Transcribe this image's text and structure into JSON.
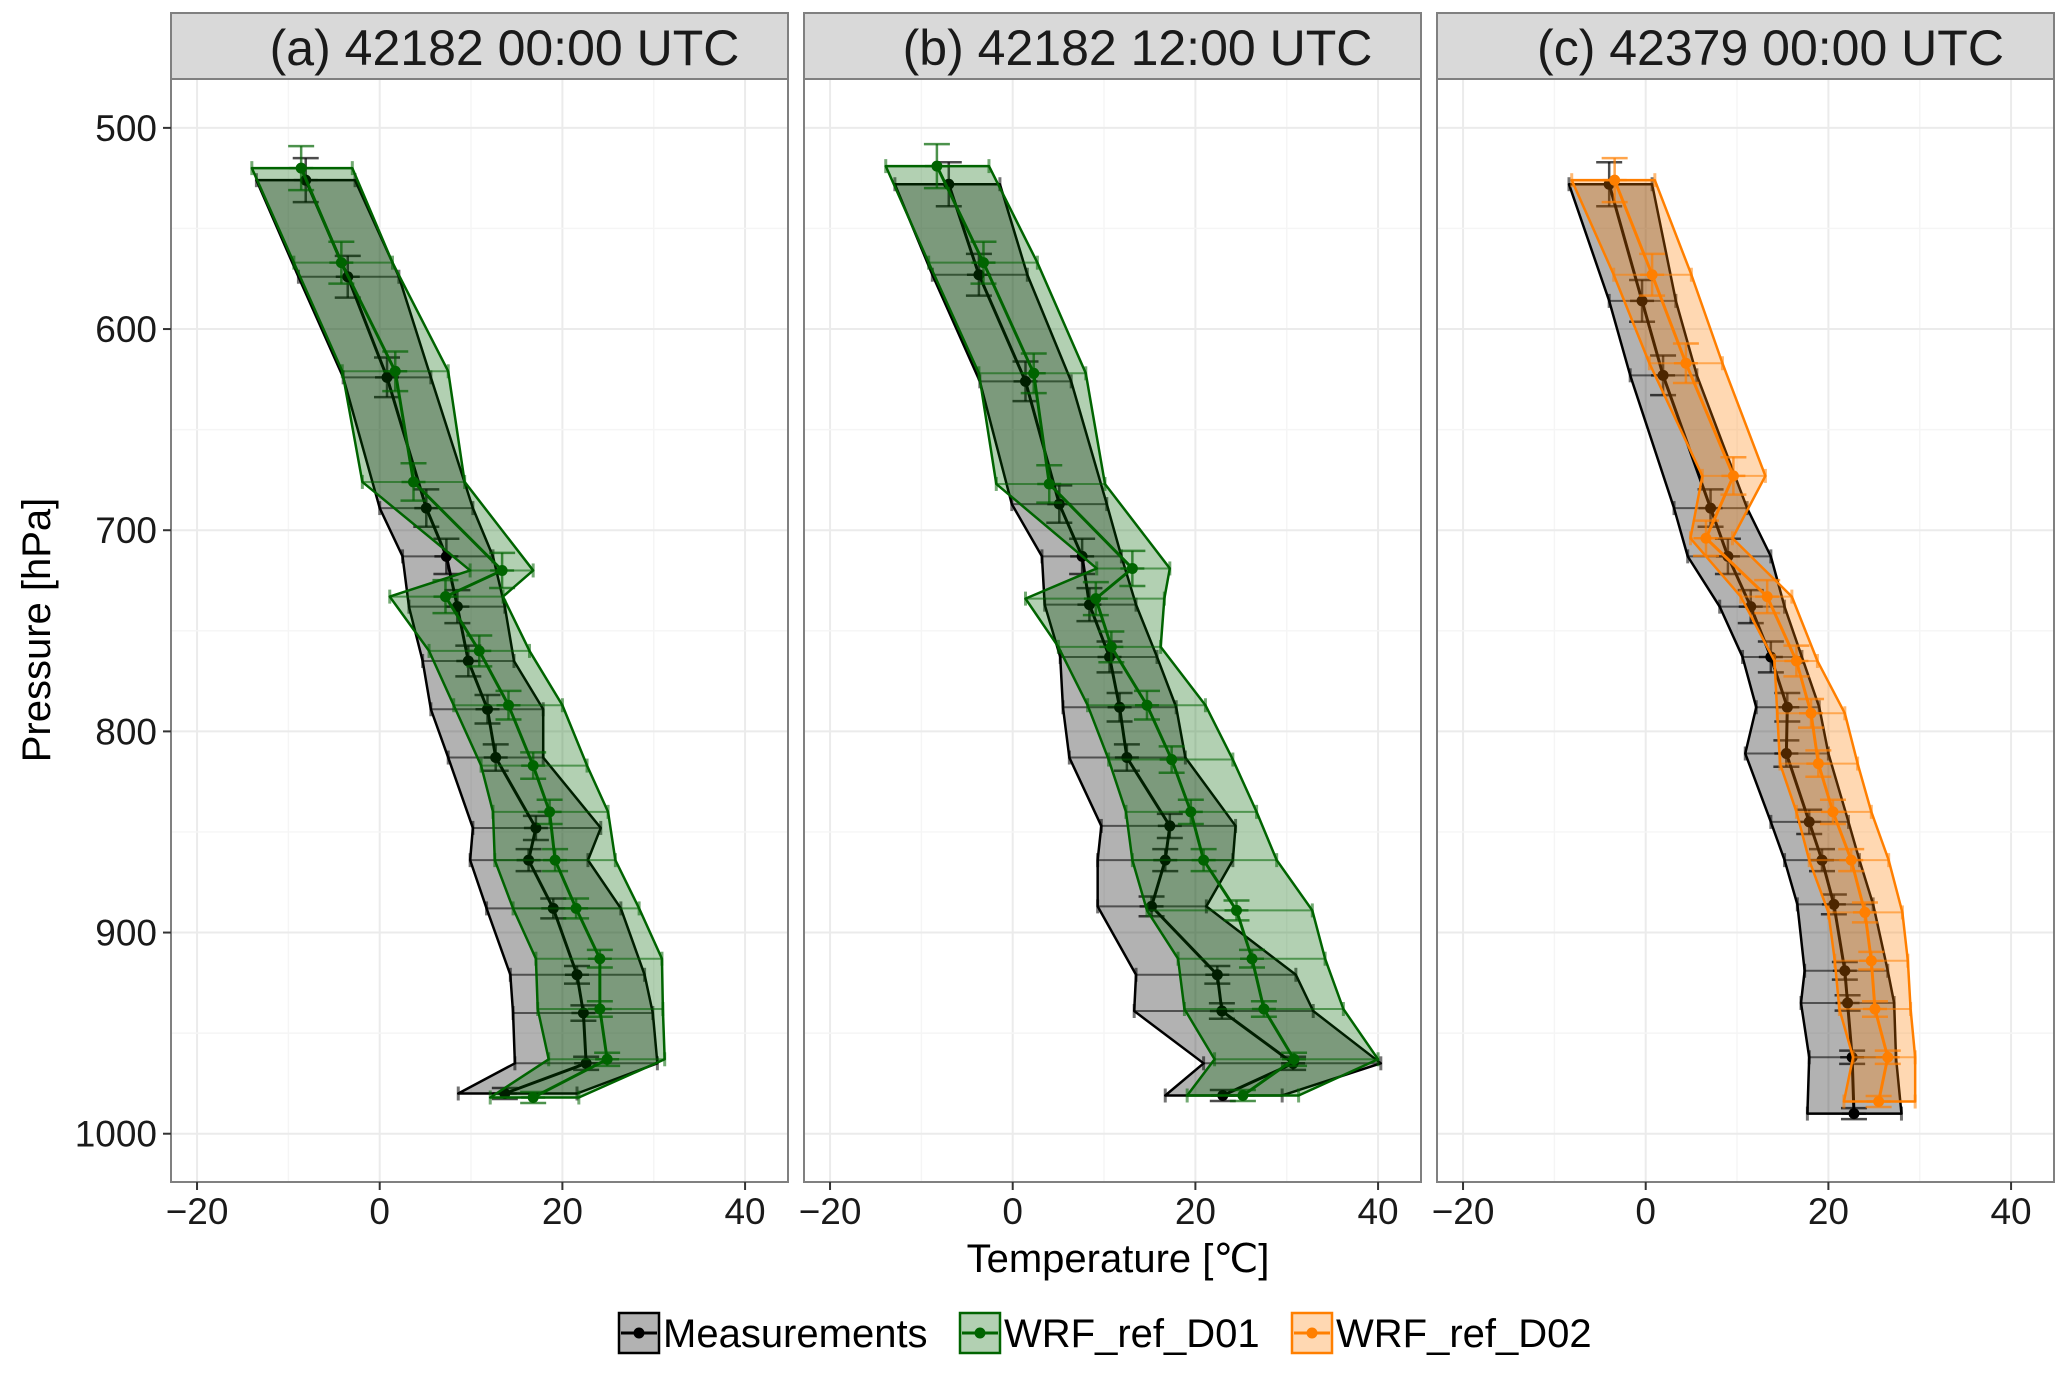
{
  "chart_data": {
    "type": "line",
    "xlabel": "Temperature [℃]",
    "ylabel": "Pressure [hPa]",
    "xlim": [
      -22.85,
      44.7
    ],
    "ylim": [
      1024,
      475.7
    ],
    "xticks": [
      -20,
      0,
      20,
      40
    ],
    "yticks": [
      500,
      600,
      700,
      800,
      900,
      1000
    ],
    "grid": true,
    "legend": {
      "placement": "bottom",
      "entries": [
        {
          "name": "Measurements",
          "color": "#000000",
          "fill": "rgba(0,0,0,0.3)"
        },
        {
          "name": "WRF_ref_D01",
          "color": "#006400",
          "fill": "rgba(0,100,0,0.3)"
        },
        {
          "name": "WRF_ref_D02",
          "color": "#ff7f00",
          "fill": "rgba(255,127,0,0.3)"
        }
      ]
    },
    "point_format": "[pressure_hPa, temperature_C, ribbon_low_C, ribbon_high_C]",
    "panels": [
      {
        "title": "(a) 42182 00:00 UTC",
        "series": [
          {
            "name": "Measurements",
            "points": [
              [
                526,
                -8.1,
                -13.5,
                -2.7
              ],
              [
                574,
                -3.5,
                -8.9,
                2.1
              ],
              [
                624,
                0.8,
                -4.0,
                5.6
              ],
              [
                689,
                5.1,
                0.0,
                10.2
              ],
              [
                713,
                7.3,
                2.5,
                12.4
              ],
              [
                738,
                8.5,
                3.2,
                13.7
              ],
              [
                765,
                9.7,
                4.7,
                14.7
              ],
              [
                789,
                11.8,
                5.6,
                17.9
              ],
              [
                813,
                12.7,
                7.5,
                17.9
              ],
              [
                848,
                17.1,
                10.2,
                24.2
              ],
              [
                864,
                16.3,
                9.9,
                22.8
              ],
              [
                888,
                19.0,
                11.7,
                26.4
              ],
              [
                921,
                21.6,
                14.3,
                29.0
              ],
              [
                940,
                22.3,
                14.6,
                29.9
              ],
              [
                965,
                22.6,
                14.8,
                30.4
              ],
              [
                980,
                13.7,
                8.6,
                21.6
              ]
            ]
          },
          {
            "name": "WRF_ref_D01",
            "points": [
              [
                520,
                -8.6,
                -14.0,
                -3.0
              ],
              [
                567,
                -4.2,
                -9.4,
                1.4
              ],
              [
                621,
                1.7,
                -4.1,
                7.5
              ],
              [
                676,
                3.7,
                -1.9,
                9.3
              ],
              [
                720,
                13.4,
                9.9,
                16.8
              ],
              [
                733,
                7.2,
                1.1,
                13.5
              ],
              [
                760,
                10.9,
                5.4,
                16.4
              ],
              [
                787,
                14.1,
                8.1,
                20.0
              ],
              [
                817,
                16.8,
                11.1,
                22.7
              ],
              [
                840,
                18.6,
                12.4,
                25.0
              ],
              [
                864,
                19.2,
                12.6,
                25.8
              ],
              [
                888,
                21.5,
                14.6,
                28.4
              ],
              [
                913,
                24.1,
                17.1,
                30.9
              ],
              [
                938,
                24.1,
                17.3,
                31.0
              ],
              [
                963,
                24.9,
                18.5,
                31.2
              ],
              [
                982,
                16.8,
                12.1,
                21.8
              ]
            ]
          }
        ]
      },
      {
        "title": "(b) 42182 12:00 UTC",
        "series": [
          {
            "name": "Measurements",
            "points": [
              [
                528,
                -7.0,
                -12.9,
                -1.4
              ],
              [
                573,
                -3.7,
                -8.8,
                1.6
              ],
              [
                626,
                1.4,
                -3.6,
                6.4
              ],
              [
                687,
                5.1,
                -0.1,
                10.3
              ],
              [
                713,
                7.6,
                3.2,
                11.9
              ],
              [
                737,
                8.4,
                3.5,
                13.5
              ],
              [
                763,
                10.6,
                5.2,
                15.8
              ],
              [
                788,
                11.7,
                5.5,
                17.9
              ],
              [
                813,
                12.5,
                6.2,
                18.9
              ],
              [
                847,
                17.2,
                9.7,
                24.4
              ],
              [
                864,
                16.7,
                9.3,
                24.1
              ],
              [
                887,
                15.2,
                9.3,
                21.2
              ],
              [
                921,
                22.4,
                13.5,
                31.0
              ],
              [
                939,
                22.9,
                13.3,
                32.9
              ],
              [
                965,
                30.7,
                20.9,
                40.3
              ],
              [
                981,
                23.0,
                16.7,
                29.5
              ]
            ]
          },
          {
            "name": "WRF_ref_D01",
            "points": [
              [
                519,
                -8.3,
                -13.9,
                -2.6
              ],
              [
                567,
                -3.2,
                -9.2,
                2.7
              ],
              [
                622,
                2.3,
                -3.7,
                8.0
              ],
              [
                677,
                4.0,
                -1.8,
                10.1
              ],
              [
                719,
                13.1,
                9.2,
                17.2
              ],
              [
                734,
                9.1,
                1.4,
                16.6
              ],
              [
                758,
                10.8,
                5.0,
                16.2
              ],
              [
                787,
                14.7,
                8.2,
                21.1
              ],
              [
                814,
                17.4,
                10.5,
                24.1
              ],
              [
                840,
                19.5,
                12.4,
                26.7
              ],
              [
                864,
                20.9,
                13.1,
                28.9
              ],
              [
                889,
                24.5,
                14.7,
                32.8
              ],
              [
                913,
                26.2,
                18.1,
                34.2
              ],
              [
                938,
                27.5,
                18.8,
                36.2
              ],
              [
                963,
                30.8,
                22.1,
                40.0
              ],
              [
                981,
                25.2,
                19.1,
                31.3
              ]
            ]
          }
        ]
      },
      {
        "title": "(c) 42379 00:00 UTC",
        "series": [
          {
            "name": "Measurements",
            "points": [
              [
                528,
                -4.0,
                -8.4,
                0.7
              ],
              [
                586,
                -0.4,
                -4.0,
                3.3
              ],
              [
                623,
                1.9,
                -1.7,
                5.6
              ],
              [
                689,
                7.1,
                3.1,
                11.1
              ],
              [
                713,
                9.0,
                4.6,
                13.7
              ],
              [
                738,
                11.5,
                8.1,
                15.2
              ],
              [
                763,
                13.7,
                10.6,
                17.1
              ],
              [
                788,
                15.5,
                12.1,
                19.0
              ],
              [
                811,
                15.4,
                10.9,
                20.0
              ],
              [
                845,
                17.9,
                13.7,
                22.2
              ],
              [
                864,
                19.3,
                15.2,
                23.4
              ],
              [
                886,
                20.6,
                16.6,
                24.9
              ],
              [
                919,
                21.8,
                17.4,
                26.5
              ],
              [
                935,
                22.1,
                17.0,
                27.2
              ],
              [
                962,
                22.6,
                17.9,
                27.4
              ],
              [
                990,
                22.8,
                17.7,
                28.0
              ]
            ]
          },
          {
            "name": "WRF_ref_D02",
            "points": [
              [
                526,
                -3.4,
                -8.1,
                1.0
              ],
              [
                573,
                0.7,
                -3.5,
                5.0
              ],
              [
                617,
                4.4,
                0.4,
                8.4
              ],
              [
                673,
                9.6,
                6.2,
                13.1
              ],
              [
                704,
                6.6,
                4.9,
                9.5
              ],
              [
                733,
                13.3,
                10.4,
                16.0
              ],
              [
                765,
                16.5,
                14.1,
                18.8
              ],
              [
                791,
                18.1,
                14.4,
                21.8
              ],
              [
                816,
                18.9,
                14.7,
                23.2
              ],
              [
                840,
                20.5,
                16.5,
                24.7
              ],
              [
                864,
                22.5,
                17.9,
                26.6
              ],
              [
                890,
                24.0,
                20.0,
                28.1
              ],
              [
                914,
                24.7,
                20.7,
                28.7
              ],
              [
                938,
                25.1,
                21.2,
                29.0
              ],
              [
                962,
                26.5,
                22.7,
                29.5
              ],
              [
                984,
                25.5,
                21.7,
                29.5
              ]
            ]
          }
        ]
      }
    ]
  }
}
